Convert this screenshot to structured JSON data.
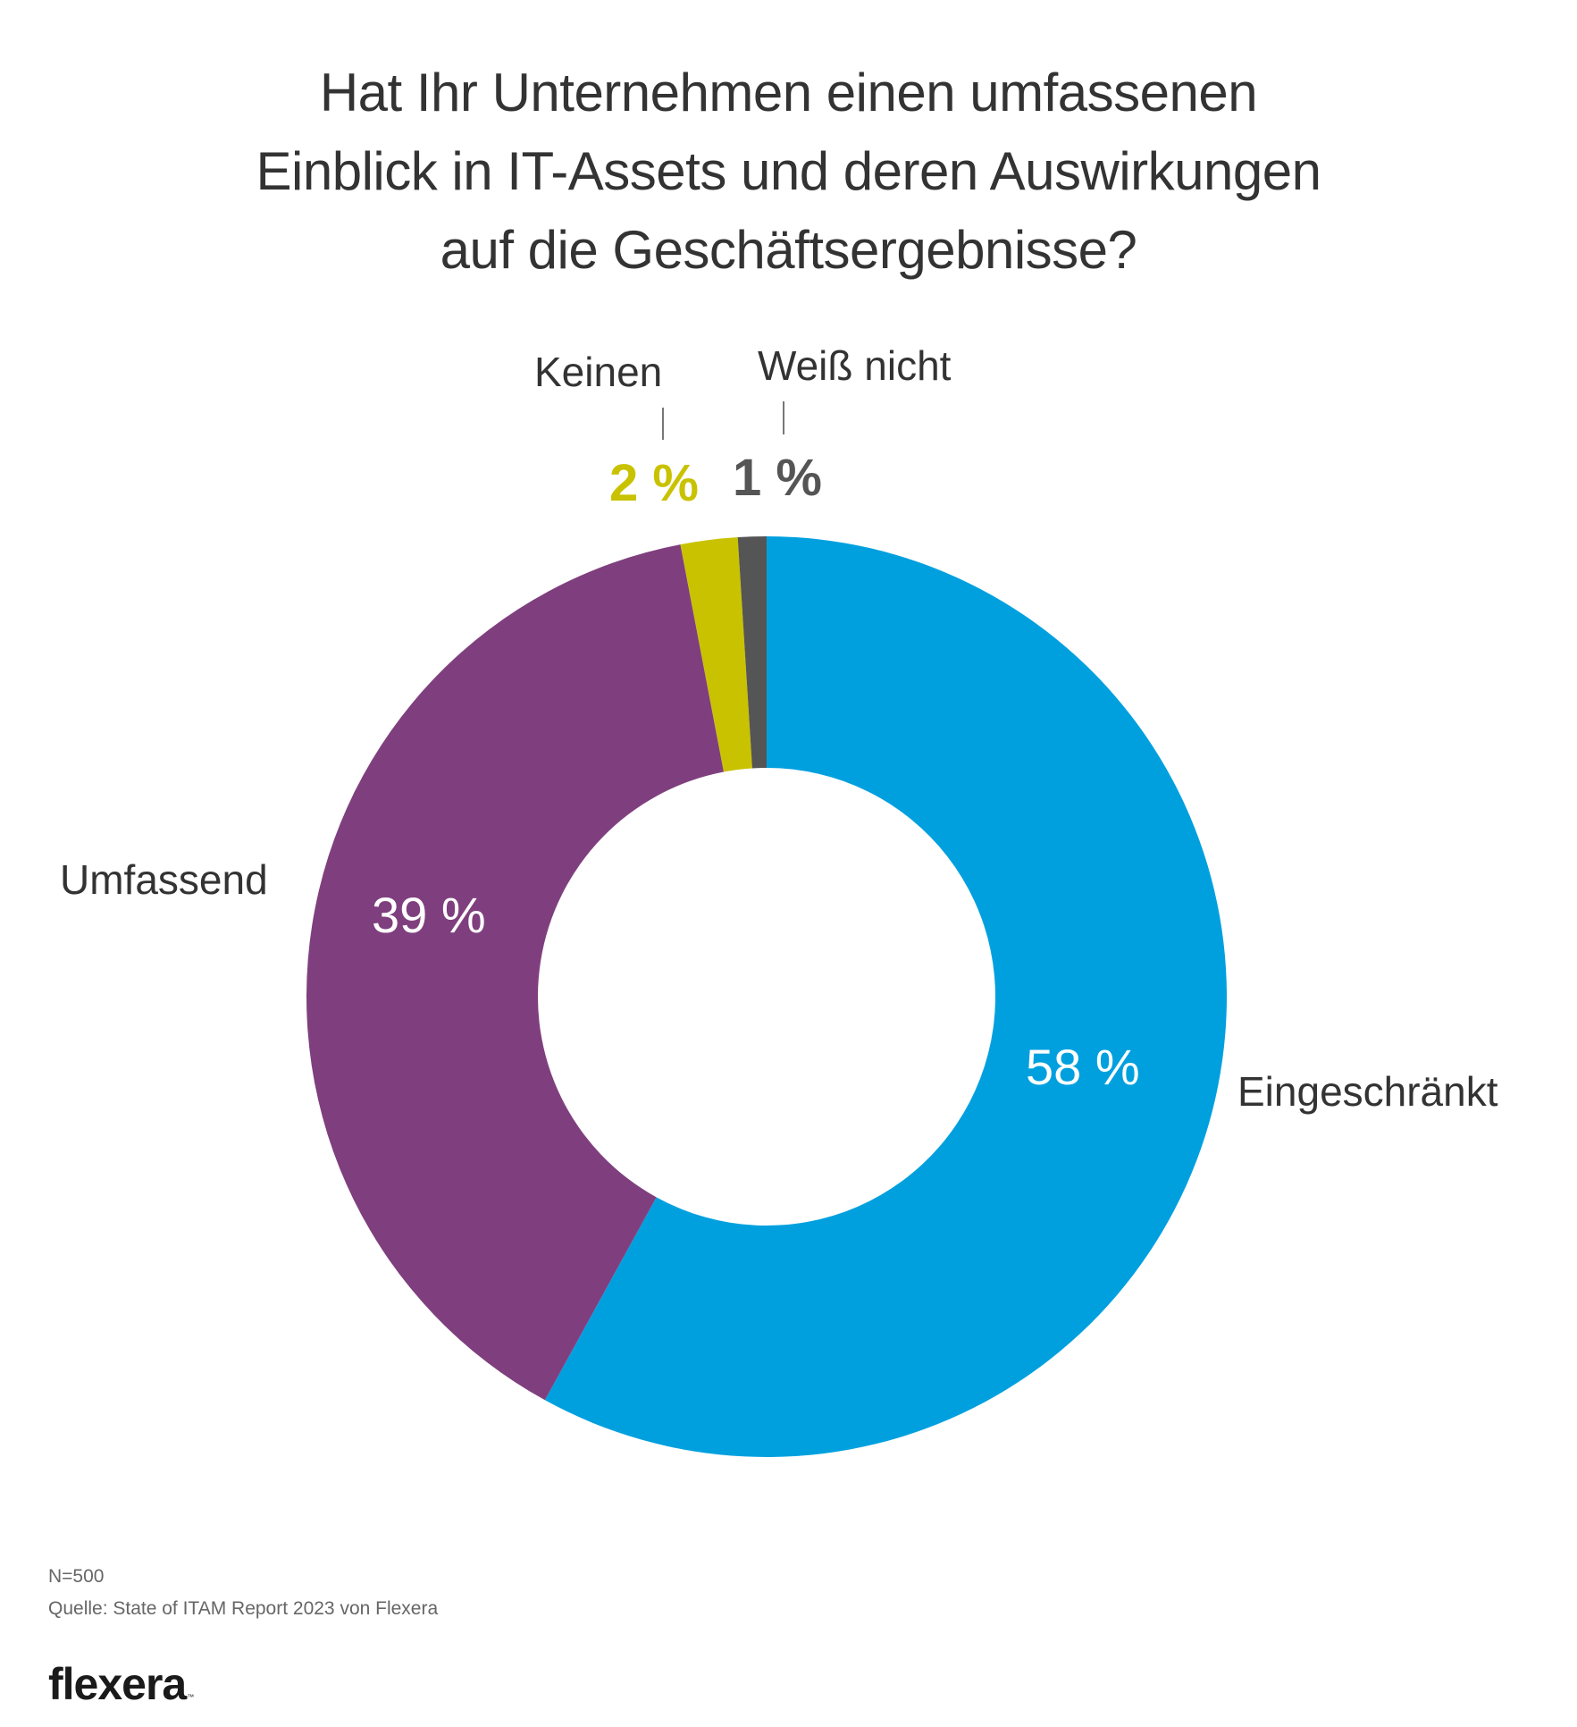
{
  "chart_data": {
    "type": "pie",
    "variant": "donut",
    "title": "Hat Ihr Unternehmen einen umfassenen Einblick in IT-Assets und deren Auswirkungen auf die Geschäftsergebnisse?",
    "title_lines": [
      "Hat Ihr Unternehmen einen umfassenen",
      "Einblick in IT-Assets und deren Auswirkungen",
      "auf die Geschäftsergebnisse?"
    ],
    "unit": "%",
    "start": "top",
    "direction": "clockwise",
    "slices": [
      {
        "label": "Eingeschränkt",
        "value": 58,
        "value_label": "58 %",
        "color": "#00a0df",
        "label_placement": "inside"
      },
      {
        "label": "Umfassend",
        "value": 39,
        "value_label": "39 %",
        "color": "#7f3f7e",
        "label_placement": "inside"
      },
      {
        "label": "Keinen",
        "value": 2,
        "value_label": "2 %",
        "color": "#c9c200",
        "label_placement": "outside"
      },
      {
        "label": "Weiß nicht",
        "value": 1,
        "value_label": "1 %",
        "color": "#555555",
        "label_placement": "outside"
      }
    ],
    "legend": "none"
  },
  "footer": {
    "sample": "N=500",
    "source": "Quelle: State of ITAM Report 2023 von Flexera",
    "logo": "flexera",
    "logo_mark": "™"
  }
}
